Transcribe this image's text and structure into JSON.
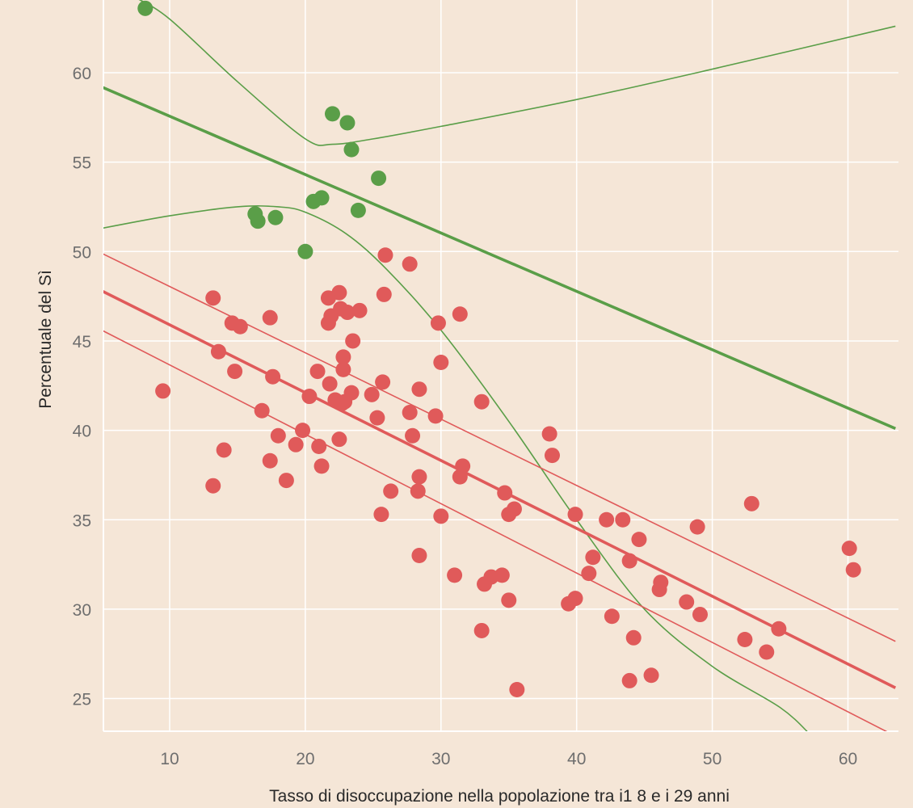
{
  "chart_data": {
    "type": "scatter",
    "xlabel": "Tasso di disoccupazione nella popolazione tra i1 8 e i 29 anni",
    "ylabel": "Percentuale del Sì",
    "xlim": [
      5,
      63.5
    ],
    "ylim": [
      23,
      63
    ],
    "xticks": [
      10,
      20,
      30,
      40,
      50,
      60
    ],
    "yticks": [
      25,
      30,
      35,
      40,
      45,
      50,
      55,
      60
    ],
    "colors": {
      "green": "#5a9e48",
      "red": "#e05a5a",
      "background": "#f5e6d7"
    },
    "series": [
      {
        "color": "#5a9e48",
        "points": [
          [
            8.2,
            63.6
          ],
          [
            22.0,
            57.7
          ],
          [
            23.1,
            57.2
          ],
          [
            23.4,
            55.7
          ],
          [
            25.4,
            54.1
          ],
          [
            21.2,
            53.0
          ],
          [
            20.6,
            52.8
          ],
          [
            23.9,
            52.3
          ],
          [
            16.3,
            52.1
          ],
          [
            16.5,
            51.7
          ],
          [
            17.8,
            51.9
          ],
          [
            20.0,
            50.0
          ]
        ],
        "trend": {
          "start": [
            5,
            59.2
          ],
          "end": [
            63.5,
            40.1
          ]
        },
        "band_upper": [
          [
            7.5,
            64.2
          ],
          [
            10,
            63.0
          ],
          [
            15,
            59.5
          ],
          [
            20,
            56.3
          ],
          [
            22,
            56.0
          ],
          [
            25,
            56.3
          ],
          [
            30,
            57.0
          ],
          [
            40,
            58.5
          ],
          [
            50,
            60.2
          ],
          [
            63.5,
            62.6
          ]
        ],
        "band_lower": [
          [
            5,
            51.3
          ],
          [
            10,
            52.0
          ],
          [
            15,
            52.5
          ],
          [
            18,
            52.5
          ],
          [
            20,
            52.2
          ],
          [
            23,
            51.0
          ],
          [
            26,
            49.0
          ],
          [
            30,
            45.6
          ],
          [
            35,
            40.5
          ],
          [
            40,
            35.0
          ],
          [
            45,
            30.0
          ],
          [
            50,
            26.8
          ],
          [
            55,
            24.5
          ],
          [
            57.2,
            23.0
          ]
        ]
      },
      {
        "color": "#e05a5a",
        "points": [
          [
            13.2,
            47.4
          ],
          [
            14.6,
            46.0
          ],
          [
            15.2,
            45.8
          ],
          [
            13.6,
            44.4
          ],
          [
            14.8,
            43.3
          ],
          [
            9.5,
            42.2
          ],
          [
            17.4,
            46.3
          ],
          [
            17.6,
            43.0
          ],
          [
            16.8,
            41.1
          ],
          [
            18.0,
            39.7
          ],
          [
            19.3,
            39.2
          ],
          [
            19.8,
            40.0
          ],
          [
            14.0,
            38.9
          ],
          [
            13.2,
            36.9
          ],
          [
            17.4,
            38.3
          ],
          [
            18.6,
            37.2
          ],
          [
            21.0,
            39.1
          ],
          [
            21.2,
            38.0
          ],
          [
            20.3,
            41.9
          ],
          [
            20.9,
            43.3
          ],
          [
            21.8,
            42.6
          ],
          [
            22.2,
            41.7
          ],
          [
            22.7,
            41.5
          ],
          [
            22.9,
            41.6
          ],
          [
            23.4,
            42.1
          ],
          [
            22.5,
            39.5
          ],
          [
            21.7,
            47.4
          ],
          [
            22.5,
            47.7
          ],
          [
            21.9,
            46.4
          ],
          [
            21.7,
            46.0
          ],
          [
            22.6,
            46.8
          ],
          [
            23.1,
            46.6
          ],
          [
            24.0,
            46.7
          ],
          [
            23.5,
            45.0
          ],
          [
            22.8,
            44.1
          ],
          [
            22.8,
            43.4
          ],
          [
            24.9,
            42.0
          ],
          [
            25.7,
            42.7
          ],
          [
            25.3,
            40.7
          ],
          [
            25.8,
            47.6
          ],
          [
            25.9,
            49.8
          ],
          [
            27.7,
            49.3
          ],
          [
            29.8,
            46.0
          ],
          [
            31.4,
            46.5
          ],
          [
            30.0,
            43.8
          ],
          [
            28.4,
            42.3
          ],
          [
            27.7,
            41.0
          ],
          [
            27.9,
            39.7
          ],
          [
            29.6,
            40.8
          ],
          [
            28.4,
            37.4
          ],
          [
            28.3,
            36.6
          ],
          [
            26.3,
            36.6
          ],
          [
            25.6,
            35.3
          ],
          [
            30.0,
            35.2
          ],
          [
            28.4,
            33.0
          ],
          [
            31.0,
            31.9
          ],
          [
            31.4,
            37.4
          ],
          [
            31.6,
            38.0
          ],
          [
            33.0,
            41.6
          ],
          [
            34.7,
            36.5
          ],
          [
            35.0,
            35.3
          ],
          [
            35.4,
            35.6
          ],
          [
            33.7,
            31.8
          ],
          [
            33.2,
            31.4
          ],
          [
            34.5,
            31.9
          ],
          [
            35.0,
            30.5
          ],
          [
            33.0,
            28.8
          ],
          [
            35.6,
            25.5
          ],
          [
            38.0,
            39.8
          ],
          [
            38.2,
            38.6
          ],
          [
            39.9,
            35.3
          ],
          [
            42.2,
            35.0
          ],
          [
            43.4,
            35.0
          ],
          [
            44.6,
            33.9
          ],
          [
            41.2,
            32.9
          ],
          [
            40.9,
            32.0
          ],
          [
            39.4,
            30.3
          ],
          [
            39.9,
            30.6
          ],
          [
            42.6,
            29.6
          ],
          [
            43.9,
            32.7
          ],
          [
            44.2,
            28.4
          ],
          [
            43.9,
            26.0
          ],
          [
            45.5,
            26.3
          ],
          [
            46.2,
            31.5
          ],
          [
            46.1,
            31.1
          ],
          [
            48.1,
            30.4
          ],
          [
            49.1,
            29.7
          ],
          [
            48.9,
            34.6
          ],
          [
            52.9,
            35.9
          ],
          [
            52.4,
            28.3
          ],
          [
            54.0,
            27.6
          ],
          [
            54.9,
            28.9
          ],
          [
            60.1,
            33.4
          ],
          [
            60.4,
            32.2
          ]
        ],
        "trend": {
          "start": [
            5,
            47.8
          ],
          "end": [
            63.5,
            25.6
          ]
        },
        "band_upper": [
          [
            5,
            49.9
          ],
          [
            63.5,
            28.2
          ]
        ],
        "band_lower": [
          [
            5,
            45.6
          ],
          [
            63.5,
            22.9
          ]
        ]
      }
    ]
  }
}
